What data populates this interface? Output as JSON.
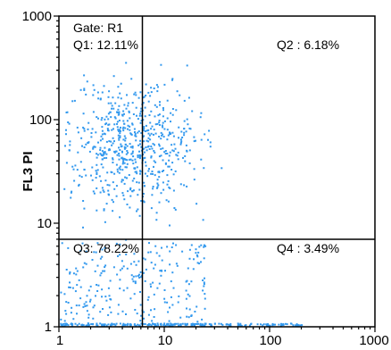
{
  "chart_data": {
    "type": "scatter",
    "title": "",
    "xlabel": "",
    "ylabel": "FL3  PI",
    "x_scale": "log",
    "y_scale": "log",
    "xlim": [
      1,
      1000
    ],
    "ylim": [
      1,
      1000
    ],
    "x_ticks": [
      "1",
      "10",
      "100",
      "1000"
    ],
    "y_ticks": [
      "1",
      "10",
      "100",
      "1000"
    ],
    "grid": false,
    "point_color": "#3399ee",
    "gate_label": "Gate: R1",
    "quadrant_divider": {
      "x": 6.2,
      "y": 7.0
    },
    "quadrants": [
      {
        "id": "Q1",
        "label": "Q1: 12.11%",
        "percent": 12.11
      },
      {
        "id": "Q2",
        "label": "Q2 : 6.18%",
        "percent": 6.18
      },
      {
        "id": "Q3",
        "label": "Q3: 78.22%",
        "percent": 78.22
      },
      {
        "id": "Q4",
        "label": "Q4 : 3.49%",
        "percent": 3.49
      }
    ]
  }
}
